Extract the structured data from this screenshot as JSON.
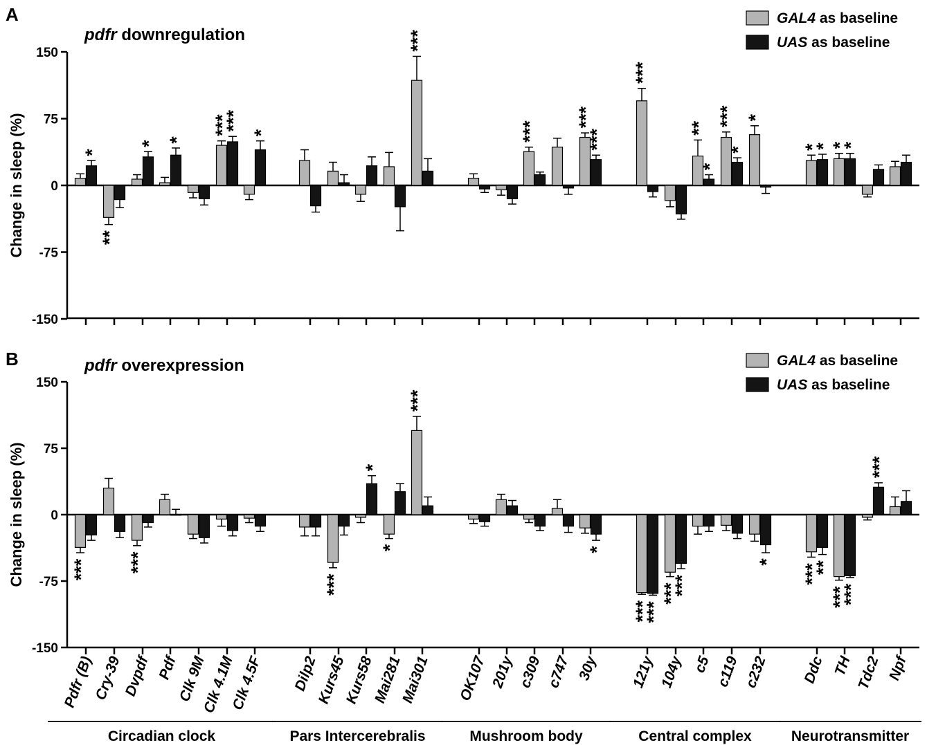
{
  "colors": {
    "gal4": "#b4b4b4",
    "uas": "#141414",
    "axis": "#000000"
  },
  "legend": [
    {
      "name": "GAL4",
      "suffix": " as baseline",
      "color": "#b4b4b4"
    },
    {
      "name": "UAS",
      "suffix": " as baseline",
      "color": "#141414"
    }
  ],
  "groups": [
    {
      "label": "Circadian clock",
      "range": [
        0,
        6
      ]
    },
    {
      "label": "Pars Intercerebralis",
      "range": [
        7,
        11
      ]
    },
    {
      "label": "Mushroom body",
      "range": [
        12,
        16
      ]
    },
    {
      "label": "Central complex",
      "range": [
        17,
        21
      ]
    },
    {
      "label": "Neurotransmitter",
      "range": [
        22,
        25
      ]
    }
  ],
  "chart_data": [
    {
      "type": "bar",
      "panel": "A",
      "title_italic": "pdfr",
      "title_rest": " downregulation",
      "ylabel": "Change in sleep (%)",
      "ylim": [
        -150,
        150
      ],
      "yticks": [
        "150",
        "75",
        "0",
        "-75",
        "-150"
      ],
      "categories": [
        "Pdfr (B)",
        "Cry-39",
        "Dvpdf",
        "Pdf",
        "Clk 9M",
        "Clk 4.1M",
        "Clk 4.5F",
        "Dilp2",
        "Kurs45",
        "Kurs58",
        "Mai281",
        "Mai301",
        "OK107",
        "201y",
        "c309",
        "c747",
        "30y",
        "121y",
        "104y",
        "c5",
        "c119",
        "c232",
        "Ddc",
        "TH",
        "Tdc2",
        "Npf"
      ],
      "series": [
        {
          "name": "GAL4 as baseline",
          "values": [
            8,
            -36,
            7,
            3,
            -8,
            45,
            -10,
            28,
            16,
            -10,
            21,
            118,
            8,
            -5,
            38,
            43,
            54,
            95,
            -17,
            33,
            54,
            57,
            28,
            30,
            -10,
            21
          ],
          "errors": [
            5,
            8,
            5,
            6,
            6,
            5,
            6,
            12,
            10,
            8,
            16,
            27,
            5,
            6,
            5,
            10,
            5,
            14,
            7,
            18,
            6,
            10,
            6,
            6,
            3,
            6
          ],
          "stars": [
            "",
            "**",
            "",
            "",
            "",
            "***",
            "",
            "",
            "",
            "",
            "",
            "***",
            "",
            "",
            "***",
            "",
            "***",
            "***",
            "",
            "**",
            "***",
            "*",
            "*",
            "*",
            "",
            ""
          ]
        },
        {
          "name": "UAS as baseline",
          "values": [
            22,
            -16,
            32,
            34,
            -15,
            49,
            40,
            -23,
            3,
            22,
            -24,
            16,
            -4,
            -15,
            12,
            -3,
            29,
            -7,
            -32,
            7,
            26,
            -2,
            29,
            30,
            18,
            26
          ],
          "errors": [
            6,
            9,
            6,
            8,
            7,
            6,
            10,
            7,
            9,
            10,
            27,
            14,
            4,
            6,
            3,
            7,
            5,
            6,
            6,
            5,
            5,
            7,
            6,
            6,
            5,
            8
          ],
          "stars": [
            "*",
            "",
            "*",
            "*",
            "",
            "***",
            "*",
            "",
            "",
            "",
            "",
            "",
            "",
            "",
            "",
            "",
            "***",
            "",
            "",
            "*",
            "*",
            "",
            "*",
            "*",
            "",
            ""
          ]
        }
      ]
    },
    {
      "type": "bar",
      "panel": "B",
      "title_italic": "pdfr",
      "title_rest": " overexpression",
      "ylabel": "Change in sleep (%)",
      "ylim": [
        -150,
        150
      ],
      "yticks": [
        "150",
        "75",
        "0",
        "-75",
        "-150"
      ],
      "categories": [
        "Pdfr (B)",
        "Cry-39",
        "Dvpdf",
        "Pdf",
        "Clk 9M",
        "Clk 4.1M",
        "Clk 4.5F",
        "Dilp2",
        "Kurs45",
        "Kurs58",
        "Mai281",
        "Mai301",
        "OK107",
        "201y",
        "c309",
        "c747",
        "30y",
        "121y",
        "104y",
        "c5",
        "c119",
        "c232",
        "Ddc",
        "TH",
        "Tdc2",
        "Npf"
      ],
      "series": [
        {
          "name": "GAL4 as baseline",
          "values": [
            -37,
            30,
            -29,
            17,
            -22,
            -5,
            -4,
            -14,
            -54,
            -3,
            -22,
            95,
            -5,
            17,
            -5,
            7,
            -15,
            -88,
            -65,
            -13,
            -12,
            -22,
            -42,
            -70,
            -3,
            9
          ],
          "errors": [
            6,
            11,
            6,
            6,
            5,
            8,
            5,
            10,
            6,
            6,
            5,
            16,
            5,
            6,
            4,
            10,
            6,
            2,
            5,
            9,
            6,
            8,
            6,
            4,
            3,
            11
          ],
          "stars": [
            "***",
            "",
            "***",
            "",
            "",
            "",
            "",
            "",
            "***",
            "",
            "*",
            "***",
            "",
            "",
            "",
            "",
            "",
            "***",
            "***",
            "",
            "",
            "",
            "***",
            "***",
            "",
            ""
          ]
        },
        {
          "name": "UAS as baseline",
          "values": [
            -23,
            -19,
            -9,
            0,
            -26,
            -18,
            -13,
            -14,
            -13,
            35,
            26,
            10,
            -8,
            10,
            -13,
            -13,
            -22,
            -89,
            -55,
            -13,
            -21,
            -34,
            -37,
            -69,
            31,
            15
          ],
          "errors": [
            6,
            7,
            5,
            6,
            6,
            6,
            6,
            10,
            10,
            9,
            9,
            10,
            5,
            6,
            5,
            7,
            7,
            2,
            6,
            6,
            6,
            9,
            8,
            2,
            5,
            12
          ],
          "stars": [
            "",
            "",
            "",
            "",
            "",
            "",
            "",
            "",
            "",
            "*",
            "",
            "",
            "",
            "",
            "",
            "",
            "*",
            "***",
            "***",
            "",
            "",
            "*",
            "**",
            "***",
            "***",
            ""
          ]
        }
      ]
    }
  ]
}
